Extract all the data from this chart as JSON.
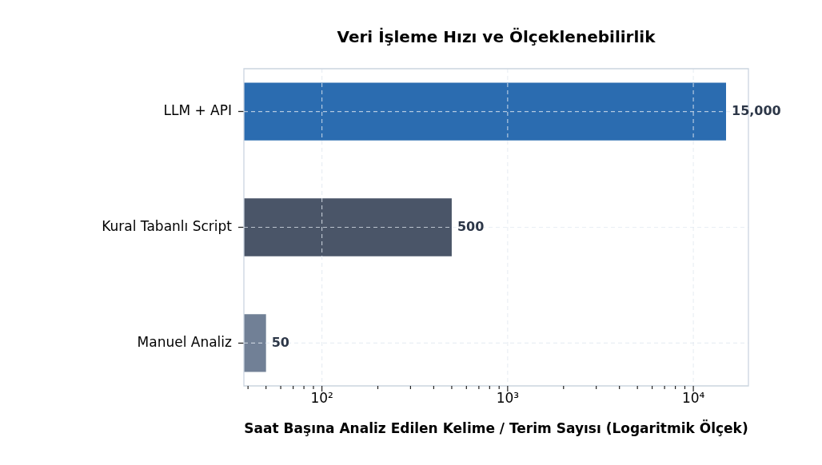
{
  "chart_data": {
    "type": "bar",
    "orientation": "horizontal",
    "title": "Veri İşleme Hızı ve Ölçeklenebilirlik",
    "xlabel": "Saat Başına Analiz Edilen Kelime / Terim Sayısı (Logaritmik Ölçek)",
    "categories": [
      "LLM + API",
      "Kural Tabanlı Script",
      "Manuel Analiz"
    ],
    "values": [
      15000,
      500,
      50
    ],
    "colors": [
      "#2b6cb0",
      "#4a5568",
      "#718096"
    ],
    "value_labels": [
      "15,000",
      "500",
      "50"
    ],
    "log": "x",
    "xlim": [
      38,
      19800
    ],
    "xticks": [
      {
        "value": 40,
        "label": null
      },
      {
        "value": 50,
        "label": null
      },
      {
        "value": 60,
        "label": null
      },
      {
        "value": 70,
        "label": null
      },
      {
        "value": 80,
        "label": null
      },
      {
        "value": 90,
        "label": null
      },
      {
        "value": 100,
        "label": "10²"
      },
      {
        "value": 200,
        "label": null
      },
      {
        "value": 300,
        "label": null
      },
      {
        "value": 400,
        "label": null
      },
      {
        "value": 500,
        "label": null
      },
      {
        "value": 600,
        "label": null
      },
      {
        "value": 700,
        "label": null
      },
      {
        "value": 800,
        "label": null
      },
      {
        "value": 900,
        "label": null
      },
      {
        "value": 1000,
        "label": "10³"
      },
      {
        "value": 2000,
        "label": null
      },
      {
        "value": 3000,
        "label": null
      },
      {
        "value": 4000,
        "label": null
      },
      {
        "value": 5000,
        "label": null
      },
      {
        "value": 6000,
        "label": null
      },
      {
        "value": 7000,
        "label": null
      },
      {
        "value": 8000,
        "label": null
      },
      {
        "value": 9000,
        "label": null
      },
      {
        "value": 10000,
        "label": "10⁴"
      }
    ],
    "grid": true
  }
}
